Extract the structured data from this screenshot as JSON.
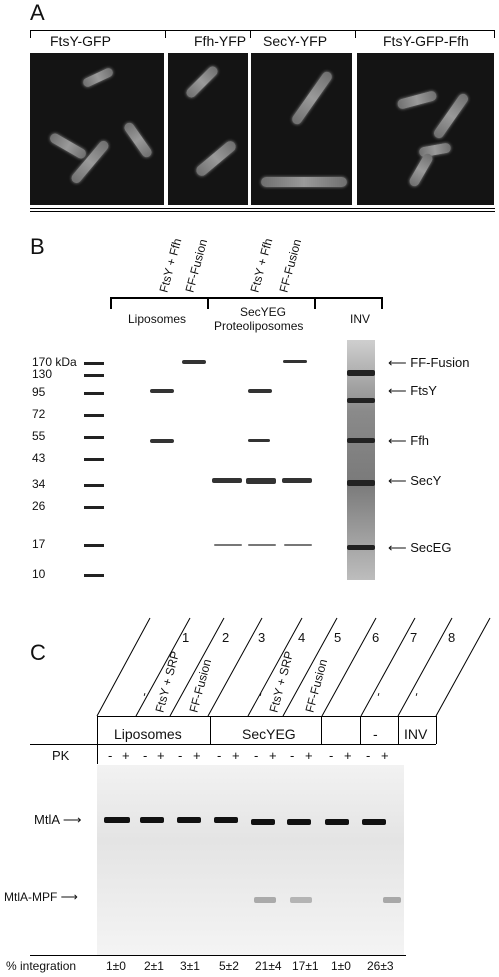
{
  "panelA": {
    "letter": "A",
    "groups": [
      "FtsY-GFP",
      "Ffh-YFP",
      "SecY-YFP",
      "FtsY-GFP-Ffh"
    ]
  },
  "panelB": {
    "letter": "B",
    "lane_labels": [
      "FtsY + Ffh",
      "FF-Fusion",
      "FtsY + Ffh",
      "FF-Fusion"
    ],
    "groups": [
      "Liposomes",
      "SecYEG",
      "Proteoliposomes",
      "INV"
    ],
    "markers": [
      "170 kDa",
      "130",
      "95",
      "72",
      "55",
      "43",
      "34",
      "26",
      "17",
      "10"
    ],
    "arrows": [
      "FF-Fusion",
      "FtsY",
      "Ffh",
      "SecY",
      "SecEG"
    ]
  },
  "panelC": {
    "letter": "C",
    "numbers": [
      "1",
      "2",
      "3",
      "4",
      "5",
      "6",
      "7",
      "8"
    ],
    "lane_labels": [
      "-",
      "FtsY + SRP",
      "FF-Fusion",
      "-",
      "FtsY + SRP",
      "FF-Fusion",
      "-",
      "-"
    ],
    "groups": [
      "Liposomes",
      "SecYEG",
      "-",
      "INV"
    ],
    "pk_label": "PK",
    "pk_signs": [
      "-",
      "+",
      "-",
      "+",
      "-",
      "+",
      "-",
      "+",
      "-",
      "+",
      "-",
      "+",
      "-",
      "+",
      "-",
      "+"
    ],
    "arrows": [
      "MtlA",
      "MtlA-MPF"
    ],
    "integration_label": "% integration",
    "integration_values": [
      "1±0",
      "2±1",
      "3±1",
      "5±2",
      "21±4",
      "17±1",
      "1±0",
      "26±3"
    ]
  }
}
